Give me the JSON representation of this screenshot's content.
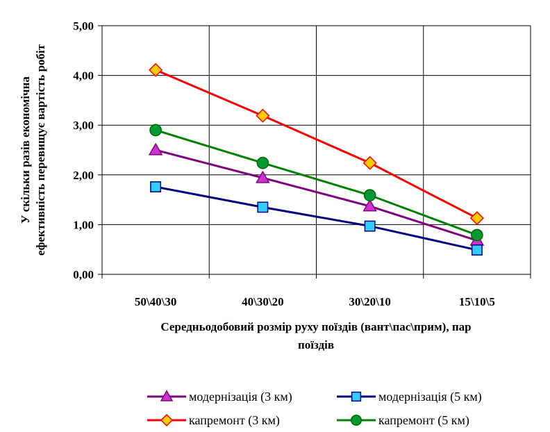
{
  "chart_data": {
    "type": "line",
    "title": "",
    "categories": [
      "50\\40\\30",
      "40\\30\\20",
      "30\\20\\10",
      "15\\10\\5"
    ],
    "xlabel": "Середньодобовий розмір руху поїздів (вант\\пас\\прим), пар поїздів",
    "xlabel_lines": [
      "Середньодобовий розмір руху поїздів (вант\\пас\\прим), пар",
      "поїздів"
    ],
    "ylabel": "У скільки разів економічна ефективність перевищує вартість робіт",
    "ylabel_lines": [
      "У скільки разів економічна",
      "ефективність перевищує вартість робіт"
    ],
    "ylim": [
      0,
      5
    ],
    "yticks": [
      0,
      1,
      2,
      3,
      4,
      5
    ],
    "ytick_labels": [
      "0,00",
      "1,00",
      "2,00",
      "3,00",
      "4,00",
      "5,00"
    ],
    "grid": true,
    "legend_position": "bottom",
    "series": [
      {
        "name": "модернізація (3 км)",
        "values": [
          2.5,
          1.94,
          1.37,
          0.68
        ],
        "line_color": "#800080",
        "marker": "triangle",
        "marker_color": "#CC33CC"
      },
      {
        "name": "модернізація (5 км)",
        "values": [
          1.76,
          1.35,
          0.97,
          0.49
        ],
        "line_color": "#000080",
        "marker": "square",
        "marker_color": "#33CCFF"
      },
      {
        "name": "капремонт (3 км)",
        "values": [
          4.11,
          3.19,
          2.24,
          1.13
        ],
        "line_color": "#FF0000",
        "marker": "diamond",
        "marker_color": "#FFCC00"
      },
      {
        "name": "капремонт (5 км)",
        "values": [
          2.9,
          2.24,
          1.59,
          0.79
        ],
        "line_color": "#008000",
        "marker": "circle",
        "marker_color": "#009933"
      }
    ]
  }
}
